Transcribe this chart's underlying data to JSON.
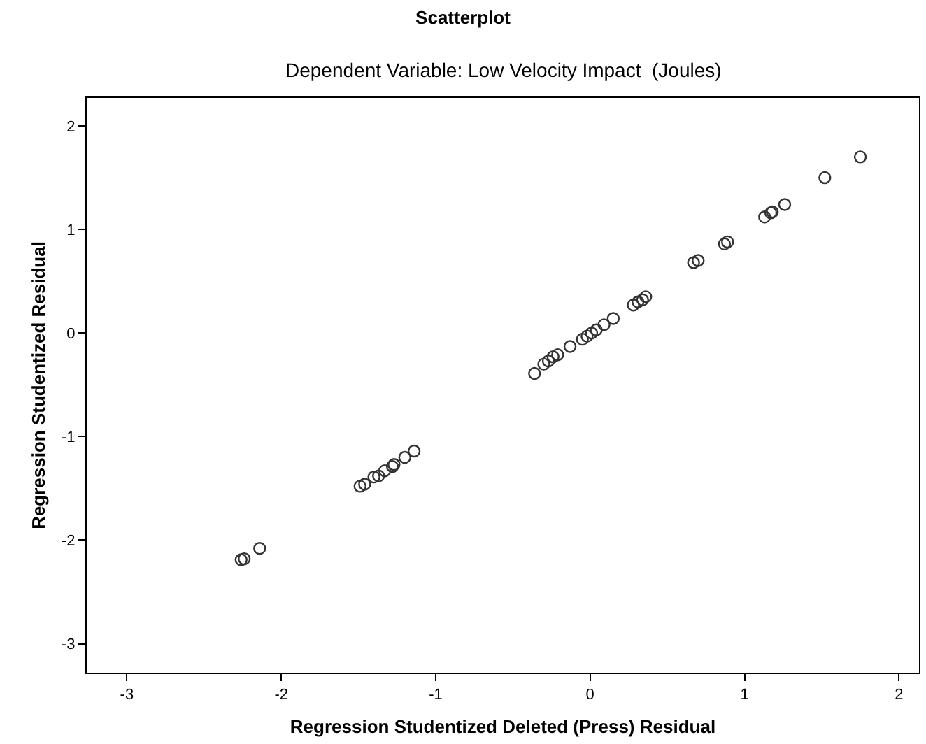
{
  "chart_data": {
    "type": "scatter",
    "title": "Scatterplot",
    "subtitle": "Dependent Variable: Low Velocity Impact  (Joules)",
    "xlabel": "Regression Studentized Deleted (Press) Residual",
    "ylabel": "Regression Studentized Residual",
    "x": [
      -2.26,
      -2.24,
      -2.14,
      -1.49,
      -1.46,
      -1.4,
      -1.37,
      -1.33,
      -1.28,
      -1.27,
      -1.2,
      -1.14,
      -0.36,
      -0.3,
      -0.27,
      -0.24,
      -0.21,
      -0.13,
      -0.05,
      -0.02,
      0.01,
      0.04,
      0.09,
      0.15,
      0.28,
      0.31,
      0.34,
      0.36,
      0.67,
      0.7,
      0.87,
      0.89,
      1.13,
      1.17,
      1.18,
      1.26,
      1.52,
      1.75
    ],
    "values": [
      -2.19,
      -2.18,
      -2.08,
      -1.48,
      -1.46,
      -1.39,
      -1.38,
      -1.33,
      -1.29,
      -1.27,
      -1.2,
      -1.14,
      -0.39,
      -0.3,
      -0.27,
      -0.23,
      -0.21,
      -0.13,
      -0.06,
      -0.03,
      0.0,
      0.03,
      0.08,
      0.14,
      0.27,
      0.3,
      0.32,
      0.35,
      0.68,
      0.7,
      0.86,
      0.88,
      1.12,
      1.16,
      1.17,
      1.24,
      1.5,
      1.7
    ],
    "color": "#333333",
    "marker": "circle",
    "legend": false,
    "xlim": [
      -3.26,
      2.13
    ],
    "xticks": [
      -3,
      -2,
      -1,
      0,
      1,
      2
    ],
    "ylim": [
      -3.28,
      2.27
    ],
    "yticks": [
      -3,
      -2,
      -1,
      0,
      1,
      2
    ]
  }
}
